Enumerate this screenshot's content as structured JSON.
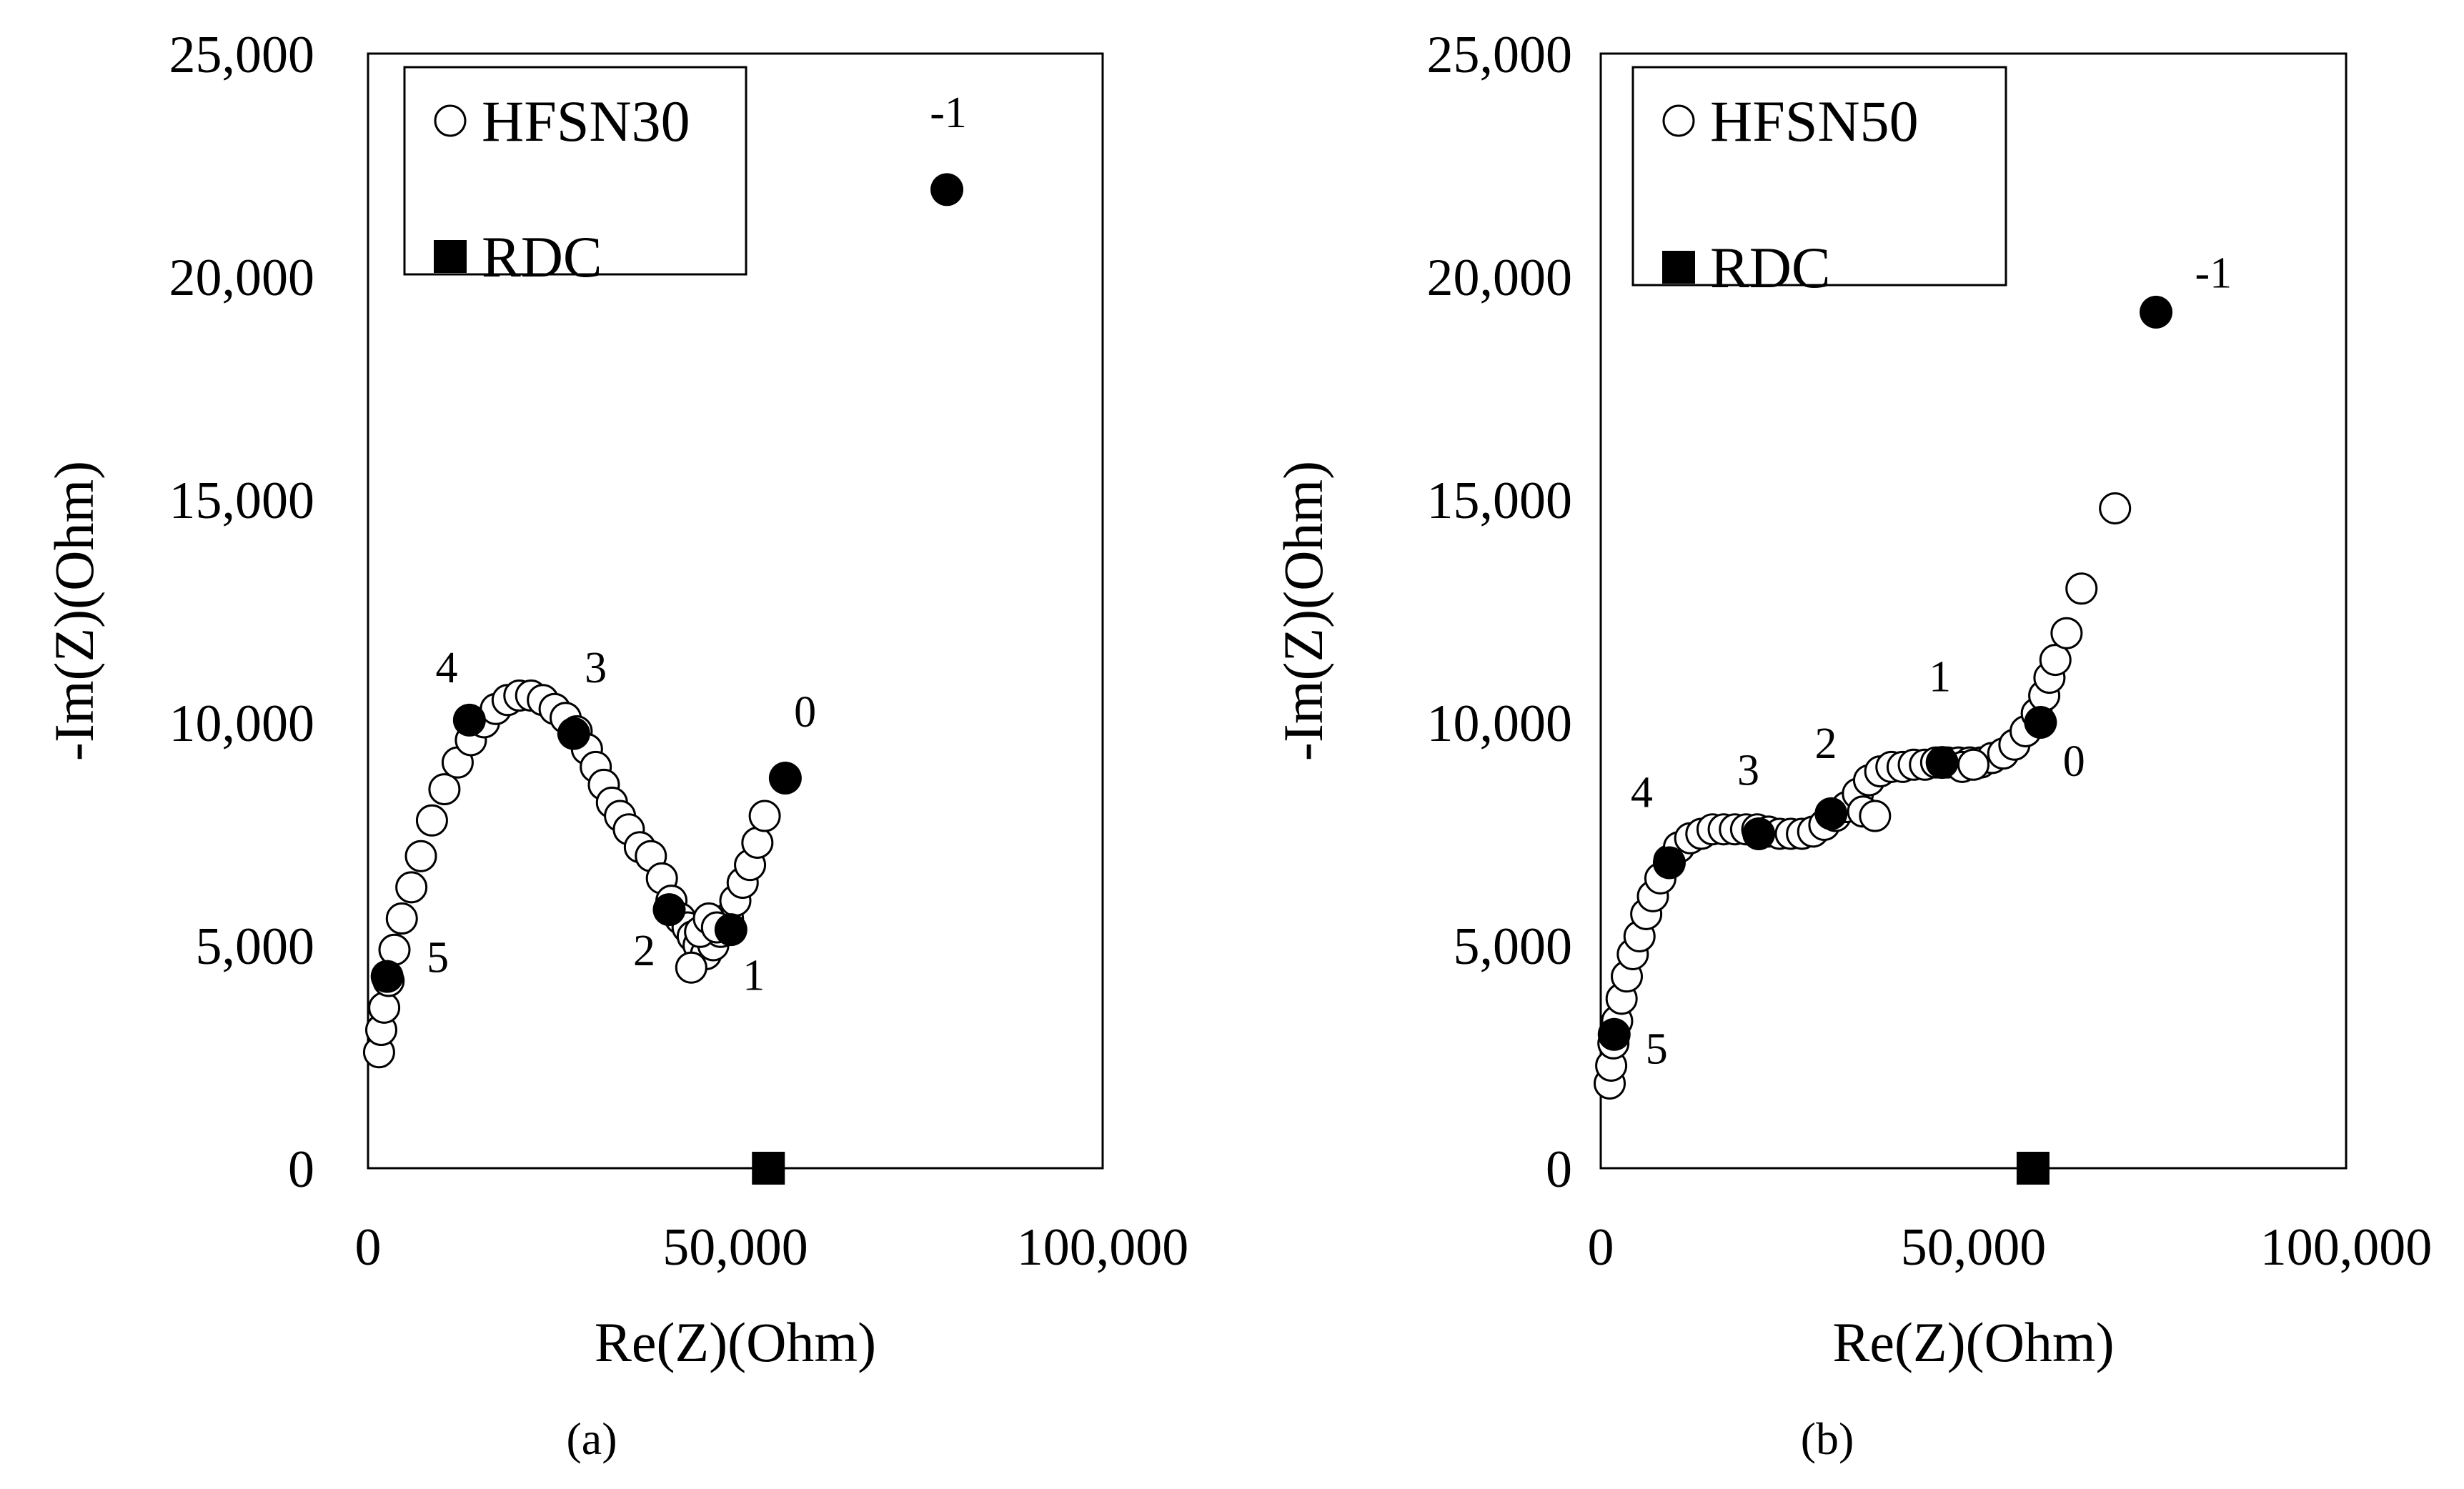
{
  "colors": {
    "background": "#ffffff",
    "ink": "#000000",
    "open_marker_fill": "#ffffff"
  },
  "chart_data": [
    {
      "type": "scatter",
      "panel_label": "(a)",
      "xlabel": "Re(Z)(Ohm)",
      "ylabel": "-Im(Z)(Ohm)",
      "xlim": [
        0,
        100000
      ],
      "ylim": [
        0,
        25000
      ],
      "xticks": [
        0,
        50000,
        100000
      ],
      "xtick_labels": [
        "0",
        "50,000",
        "100,000"
      ],
      "yticks": [
        0,
        5000,
        10000,
        15000,
        20000,
        25000
      ],
      "ytick_labels": [
        "0",
        "5,000",
        "10,000",
        "15,000",
        "20,000",
        "25,000"
      ],
      "grid": false,
      "legend_position": "top-left",
      "series": [
        {
          "name": "HFSN30",
          "marker": "open-circle",
          "points": [
            [
              1500,
              2600
            ],
            [
              1800,
              3100
            ],
            [
              2200,
              3600
            ],
            [
              2800,
              4200
            ],
            [
              3600,
              4900
            ],
            [
              4600,
              5600
            ],
            [
              5900,
              6300
            ],
            [
              7200,
              7000
            ],
            [
              8700,
              7800
            ],
            [
              10400,
              8500
            ],
            [
              12200,
              9100
            ],
            [
              14000,
              9600
            ],
            [
              15800,
              10000
            ],
            [
              17400,
              10300
            ],
            [
              19000,
              10500
            ],
            [
              20600,
              10600
            ],
            [
              22200,
              10600
            ],
            [
              23800,
              10500
            ],
            [
              25400,
              10300
            ],
            [
              26900,
              10100
            ],
            [
              28400,
              9800
            ],
            [
              29800,
              9400
            ],
            [
              31000,
              9000
            ],
            [
              32100,
              8600
            ],
            [
              33200,
              8200
            ],
            [
              34300,
              7900
            ],
            [
              35500,
              7600
            ],
            [
              37000,
              7200
            ],
            [
              38500,
              7000
            ],
            [
              40000,
              6500
            ],
            [
              41300,
              6000
            ],
            [
              42500,
              5600
            ],
            [
              43500,
              5400
            ],
            [
              44200,
              5200
            ],
            [
              45000,
              5000
            ],
            [
              46000,
              4800
            ],
            [
              47000,
              5000
            ],
            [
              48000,
              5300
            ],
            [
              49000,
              5600
            ],
            [
              50000,
              6000
            ],
            [
              51000,
              6400
            ],
            [
              52000,
              6800
            ],
            [
              53000,
              7300
            ],
            [
              54000,
              7900
            ],
            [
              44000,
              4500
            ],
            [
              45200,
              5300
            ],
            [
              46400,
              5600
            ],
            [
              47500,
              5400
            ]
          ]
        },
        {
          "name": "RDC",
          "marker": "filled-square",
          "points": [
            [
              54500,
              0
            ]
          ]
        },
        {
          "name": "",
          "marker": "filled-circle",
          "points": [
            [
              78800,
              21950
            ],
            [
              56800,
              8750
            ],
            [
              49400,
              5350
            ],
            [
              41000,
              5800
            ],
            [
              28000,
              9750
            ],
            [
              13800,
              10050
            ],
            [
              2600,
              4300
            ]
          ]
        }
      ],
      "point_labels": [
        {
          "text": "-1",
          "x": 79000,
          "y": 23350
        },
        {
          "text": "0",
          "x": 59500,
          "y": 9900
        },
        {
          "text": "1",
          "x": 52500,
          "y": 4000
        },
        {
          "text": "2",
          "x": 37600,
          "y": 4550
        },
        {
          "text": "3",
          "x": 31000,
          "y": 10900
        },
        {
          "text": "4",
          "x": 10700,
          "y": 10900
        },
        {
          "text": "5",
          "x": 9500,
          "y": 4400
        }
      ]
    },
    {
      "type": "scatter",
      "panel_label": "(b)",
      "xlabel": "Re(Z)(Ohm)",
      "ylabel": "-Im(Z)(Ohm)",
      "xlim": [
        0,
        100000
      ],
      "ylim": [
        0,
        25000
      ],
      "xticks": [
        0,
        50000,
        100000
      ],
      "xtick_labels": [
        "0",
        "50,000",
        "100,000"
      ],
      "yticks": [
        0,
        5000,
        10000,
        15000,
        20000,
        25000
      ],
      "ytick_labels": [
        "0",
        "5,000",
        "10,000",
        "15,000",
        "20,000",
        "25,000"
      ],
      "grid": false,
      "legend_position": "top-left",
      "series": [
        {
          "name": "HFSN50",
          "marker": "open-circle",
          "points": [
            [
              1200,
              1900
            ],
            [
              1400,
              2300
            ],
            [
              1700,
              2800
            ],
            [
              2200,
              3300
            ],
            [
              2800,
              3800
            ],
            [
              3500,
              4300
            ],
            [
              4300,
              4800
            ],
            [
              5200,
              5200
            ],
            [
              6100,
              5700
            ],
            [
              7000,
              6100
            ],
            [
              8000,
              6500
            ],
            [
              9200,
              6900
            ],
            [
              10500,
              7200
            ],
            [
              12000,
              7400
            ],
            [
              13500,
              7500
            ],
            [
              15000,
              7600
            ],
            [
              16500,
              7600
            ],
            [
              18000,
              7600
            ],
            [
              19500,
              7600
            ],
            [
              21000,
              7600
            ],
            [
              22500,
              7550
            ],
            [
              24000,
              7500
            ],
            [
              25500,
              7500
            ],
            [
              27000,
              7500
            ],
            [
              28500,
              7550
            ],
            [
              30000,
              7700
            ],
            [
              31500,
              7900
            ],
            [
              33000,
              8100
            ],
            [
              34500,
              8400
            ],
            [
              36000,
              8700
            ],
            [
              37500,
              8900
            ],
            [
              39000,
              9000
            ],
            [
              40500,
              9000
            ],
            [
              42000,
              9050
            ],
            [
              43500,
              9050
            ],
            [
              45000,
              9100
            ],
            [
              46500,
              9100
            ],
            [
              48000,
              9100
            ],
            [
              49500,
              9100
            ],
            [
              51000,
              9100
            ],
            [
              52500,
              9200
            ],
            [
              54000,
              9300
            ],
            [
              55500,
              9500
            ],
            [
              57000,
              9800
            ],
            [
              58500,
              10200
            ],
            [
              59500,
              10600
            ],
            [
              60200,
              11000
            ],
            [
              61000,
              11400
            ],
            [
              62500,
              12000
            ],
            [
              64500,
              13000
            ],
            [
              69000,
              14800
            ],
            [
              35200,
              8000
            ],
            [
              36800,
              7900
            ],
            [
              48500,
              9000
            ],
            [
              50000,
              9050
            ]
          ]
        },
        {
          "name": "RDC",
          "marker": "filled-square",
          "points": [
            [
              58000,
              0
            ]
          ]
        },
        {
          "name": "",
          "marker": "filled-circle",
          "points": [
            [
              74500,
              19200
            ],
            [
              59000,
              10000
            ],
            [
              45800,
              9100
            ],
            [
              30900,
              7950
            ],
            [
              21200,
              7500
            ],
            [
              9200,
              6850
            ],
            [
              1800,
              3000
            ]
          ]
        }
      ],
      "point_labels": [
        {
          "text": "-1",
          "x": 82200,
          "y": 19750
        },
        {
          "text": "0",
          "x": 63500,
          "y": 8800
        },
        {
          "text": "1",
          "x": 45500,
          "y": 10700
        },
        {
          "text": "2",
          "x": 30200,
          "y": 9200
        },
        {
          "text": "3",
          "x": 19800,
          "y": 8600
        },
        {
          "text": "4",
          "x": 5500,
          "y": 8100
        },
        {
          "text": "5",
          "x": 7500,
          "y": 2350
        }
      ]
    }
  ]
}
